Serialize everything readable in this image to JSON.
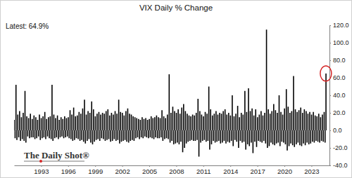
{
  "chart_data": {
    "type": "bar",
    "title": "VIX Daily % Change",
    "annotations": [
      "Latest: 64.9%",
      "The Daily Shot®"
    ],
    "x": [
      1990.0,
      1990.1,
      1990.2,
      1990.3,
      1990.4,
      1990.5,
      1990.6,
      1990.7,
      1990.8,
      1990.9,
      1991.0,
      1991.1,
      1991.2,
      1991.3,
      1991.4,
      1991.5,
      1991.6,
      1991.7,
      1991.8,
      1991.9,
      1992.0,
      1992.1,
      1992.2,
      1992.3,
      1992.4,
      1992.5,
      1992.6,
      1992.7,
      1992.8,
      1992.9,
      1993.0,
      1993.1,
      1993.2,
      1993.3,
      1993.4,
      1993.5,
      1993.6,
      1993.7,
      1993.8,
      1993.9,
      1994.0,
      1994.1,
      1994.2,
      1994.3,
      1994.4,
      1994.5,
      1994.6,
      1994.7,
      1994.8,
      1994.9,
      1995.0,
      1995.1,
      1995.2,
      1995.3,
      1995.4,
      1995.5,
      1995.6,
      1995.7,
      1995.8,
      1995.9,
      1996.0,
      1996.1,
      1996.2,
      1996.3,
      1996.4,
      1996.5,
      1996.6,
      1996.7,
      1996.8,
      1996.9,
      1997.0,
      1997.1,
      1997.2,
      1997.3,
      1997.4,
      1997.5,
      1997.6,
      1997.7,
      1997.8,
      1997.9,
      1998.0,
      1998.1,
      1998.2,
      1998.3,
      1998.4,
      1998.5,
      1998.6,
      1998.7,
      1998.8,
      1998.9,
      1999.0,
      1999.1,
      1999.2,
      1999.3,
      1999.4,
      1999.5,
      1999.6,
      1999.7,
      1999.8,
      1999.9,
      2000.0,
      2000.1,
      2000.2,
      2000.3,
      2000.4,
      2000.5,
      2000.6,
      2000.7,
      2000.8,
      2000.9,
      2001.0,
      2001.1,
      2001.2,
      2001.3,
      2001.4,
      2001.5,
      2001.6,
      2001.7,
      2001.8,
      2001.9,
      2002.0,
      2002.1,
      2002.2,
      2002.3,
      2002.4,
      2002.5,
      2002.6,
      2002.7,
      2002.8,
      2002.9,
      2003.0,
      2003.1,
      2003.2,
      2003.3,
      2003.4,
      2003.5,
      2003.6,
      2003.7,
      2003.8,
      2003.9,
      2004.0,
      2004.1,
      2004.2,
      2004.3,
      2004.4,
      2004.5,
      2004.6,
      2004.7,
      2004.8,
      2004.9,
      2005.0,
      2005.1,
      2005.2,
      2005.3,
      2005.4,
      2005.5,
      2005.6,
      2005.7,
      2005.8,
      2005.9,
      2006.0,
      2006.1,
      2006.2,
      2006.3,
      2006.4,
      2006.5,
      2006.6,
      2006.7,
      2006.8,
      2006.9,
      2007.0,
      2007.1,
      2007.2,
      2007.3,
      2007.4,
      2007.5,
      2007.6,
      2007.7,
      2007.8,
      2007.9,
      2008.0,
      2008.1,
      2008.2,
      2008.3,
      2008.4,
      2008.5,
      2008.6,
      2008.7,
      2008.8,
      2008.9,
      2009.0,
      2009.1,
      2009.2,
      2009.3,
      2009.4,
      2009.5,
      2009.6,
      2009.7,
      2009.8,
      2009.9,
      2010.0,
      2010.1,
      2010.2,
      2010.3,
      2010.4,
      2010.5,
      2010.6,
      2010.7,
      2010.8,
      2010.9,
      2011.0,
      2011.1,
      2011.2,
      2011.3,
      2011.4,
      2011.5,
      2011.6,
      2011.7,
      2011.8,
      2011.9,
      2012.0,
      2012.1,
      2012.2,
      2012.3,
      2012.4,
      2012.5,
      2012.6,
      2012.7,
      2012.8,
      2012.9,
      2013.0,
      2013.1,
      2013.2,
      2013.3,
      2013.4,
      2013.5,
      2013.6,
      2013.7,
      2013.8,
      2013.9,
      2014.0,
      2014.1,
      2014.2,
      2014.3,
      2014.4,
      2014.5,
      2014.6,
      2014.7,
      2014.8,
      2014.9,
      2015.0,
      2015.1,
      2015.2,
      2015.3,
      2015.4,
      2015.5,
      2015.6,
      2015.7,
      2015.8,
      2015.9,
      2016.0,
      2016.1,
      2016.2,
      2016.3,
      2016.4,
      2016.5,
      2016.6,
      2016.7,
      2016.8,
      2016.9,
      2017.0,
      2017.1,
      2017.2,
      2017.3,
      2017.4,
      2017.5,
      2017.6,
      2017.7,
      2017.8,
      2017.9,
      2018.0,
      2018.1,
      2018.2,
      2018.3,
      2018.4,
      2018.5,
      2018.6,
      2018.7,
      2018.8,
      2018.9,
      2019.0,
      2019.1,
      2019.2,
      2019.3,
      2019.4,
      2019.5,
      2019.6,
      2019.7,
      2019.8,
      2019.9,
      2020.0,
      2020.1,
      2020.2,
      2020.3,
      2020.4,
      2020.5,
      2020.6,
      2020.7,
      2020.8,
      2020.9,
      2021.0,
      2021.1,
      2021.2,
      2021.3,
      2021.4,
      2021.5,
      2021.6,
      2021.7,
      2021.8,
      2021.9,
      2022.0,
      2022.1,
      2022.2,
      2022.3,
      2022.4,
      2022.5,
      2022.6,
      2022.7,
      2022.8,
      2022.9,
      2023.0,
      2023.1,
      2023.2,
      2023.3,
      2023.4,
      2023.5,
      2023.6,
      2023.7,
      2023.8,
      2023.9,
      2024.0,
      2024.1,
      2024.2,
      2024.3,
      2024.4,
      2024.5,
      2024.6
    ],
    "values": [
      12,
      -9,
      52,
      -11,
      18,
      -8,
      22,
      -12,
      15,
      -10,
      20,
      -12,
      45,
      -14,
      16,
      -7,
      14,
      -9,
      19,
      -8,
      13,
      -8,
      17,
      -10,
      15,
      -9,
      12,
      -7,
      18,
      -11,
      14,
      -9,
      16,
      -8,
      21,
      -10,
      13,
      -7,
      15,
      -9,
      16,
      -10,
      52,
      -12,
      18,
      -9,
      14,
      -8,
      17,
      -10,
      12,
      -8,
      15,
      -7,
      13,
      -9,
      16,
      -8,
      14,
      -7,
      15,
      -9,
      23,
      -10,
      18,
      -12,
      26,
      -11,
      16,
      -9,
      17,
      -10,
      21,
      -12,
      19,
      -11,
      25,
      -13,
      35,
      -15,
      18,
      -12,
      22,
      -10,
      20,
      -14,
      33,
      -16,
      24,
      -13,
      16,
      -11,
      19,
      -10,
      21,
      -12,
      18,
      -9,
      20,
      -10,
      19,
      -12,
      22,
      -11,
      24,
      -10,
      17,
      -13,
      20,
      -12,
      18,
      -10,
      22,
      -12,
      19,
      -11,
      35,
      -15,
      21,
      -13,
      20,
      -12,
      17,
      -11,
      22,
      -13,
      25,
      -14,
      19,
      -12,
      18,
      -11,
      16,
      -12,
      15,
      -9,
      14,
      -8,
      13,
      -10,
      12,
      -8,
      15,
      -9,
      13,
      -7,
      14,
      -8,
      12,
      -9,
      13,
      -8,
      16,
      -9,
      14,
      -10,
      15,
      -8,
      17,
      -9,
      15,
      -9,
      14,
      -8,
      23,
      -12,
      16,
      -10,
      14,
      -9,
      18,
      -10,
      64,
      -14,
      20,
      -12,
      27,
      -16,
      22,
      -15,
      20,
      -14,
      24,
      -16,
      19,
      -13,
      26,
      -25,
      30,
      -20,
      22,
      -15,
      19,
      -13,
      17,
      -12,
      16,
      -11,
      18,
      -12,
      17,
      -12,
      20,
      -11,
      36,
      -30,
      22,
      -14,
      18,
      -12,
      16,
      -11,
      21,
      -13,
      19,
      -12,
      50,
      -22,
      24,
      -16,
      17,
      -12,
      19,
      -14,
      22,
      -13,
      18,
      -12,
      20,
      -15,
      19,
      -14,
      22,
      -12,
      24,
      -15,
      18,
      -13,
      20,
      -14,
      17,
      -12,
      40,
      -18,
      16,
      -11,
      19,
      -13,
      28,
      -20,
      15,
      -12,
      20,
      -14,
      18,
      -13,
      45,
      -22,
      21,
      -16,
      48,
      -18,
      22,
      -14,
      25,
      -26,
      17,
      -13,
      24,
      -19,
      15,
      -12,
      18,
      -13,
      22,
      -14,
      17,
      -12,
      20,
      -15,
      115,
      -20,
      24,
      -18,
      19,
      -14,
      22,
      -16,
      30,
      -17,
      23,
      -15,
      20,
      -14,
      40,
      -18,
      21,
      -13,
      18,
      -14,
      25,
      -16,
      47,
      -23,
      27,
      -18,
      20,
      -15,
      22,
      -17,
      62,
      -19,
      24,
      -16,
      21,
      -14,
      23,
      -17,
      26,
      -18,
      20,
      -15,
      24,
      -17,
      22,
      -14,
      19,
      -16,
      21,
      -15,
      18,
      -13,
      21,
      -14,
      17,
      -12,
      16,
      -13,
      19,
      -14,
      15,
      -12,
      18,
      -13,
      21,
      -14,
      64.9
    ],
    "color": "#000000",
    "xlim": [
      1990,
      2025
    ],
    "xticks": [
      1993,
      1996,
      1999,
      2002,
      2005,
      2008,
      2011,
      2014,
      2017,
      2020,
      2023
    ],
    "ylim": [
      -40,
      120
    ],
    "yticks": [
      {
        "value": 120,
        "label": "120.0"
      },
      {
        "value": 100,
        "label": "100.0"
      },
      {
        "value": 80,
        "label": "80.0"
      },
      {
        "value": 60,
        "label": "60.0"
      },
      {
        "value": 40,
        "label": "40.0"
      },
      {
        "value": 20,
        "label": "20.0"
      },
      {
        "value": 0,
        "label": "0.0"
      },
      {
        "value": -20,
        "label": "-20.0"
      },
      {
        "value": -40,
        "label": "-40.0"
      }
    ],
    "grid": false
  }
}
